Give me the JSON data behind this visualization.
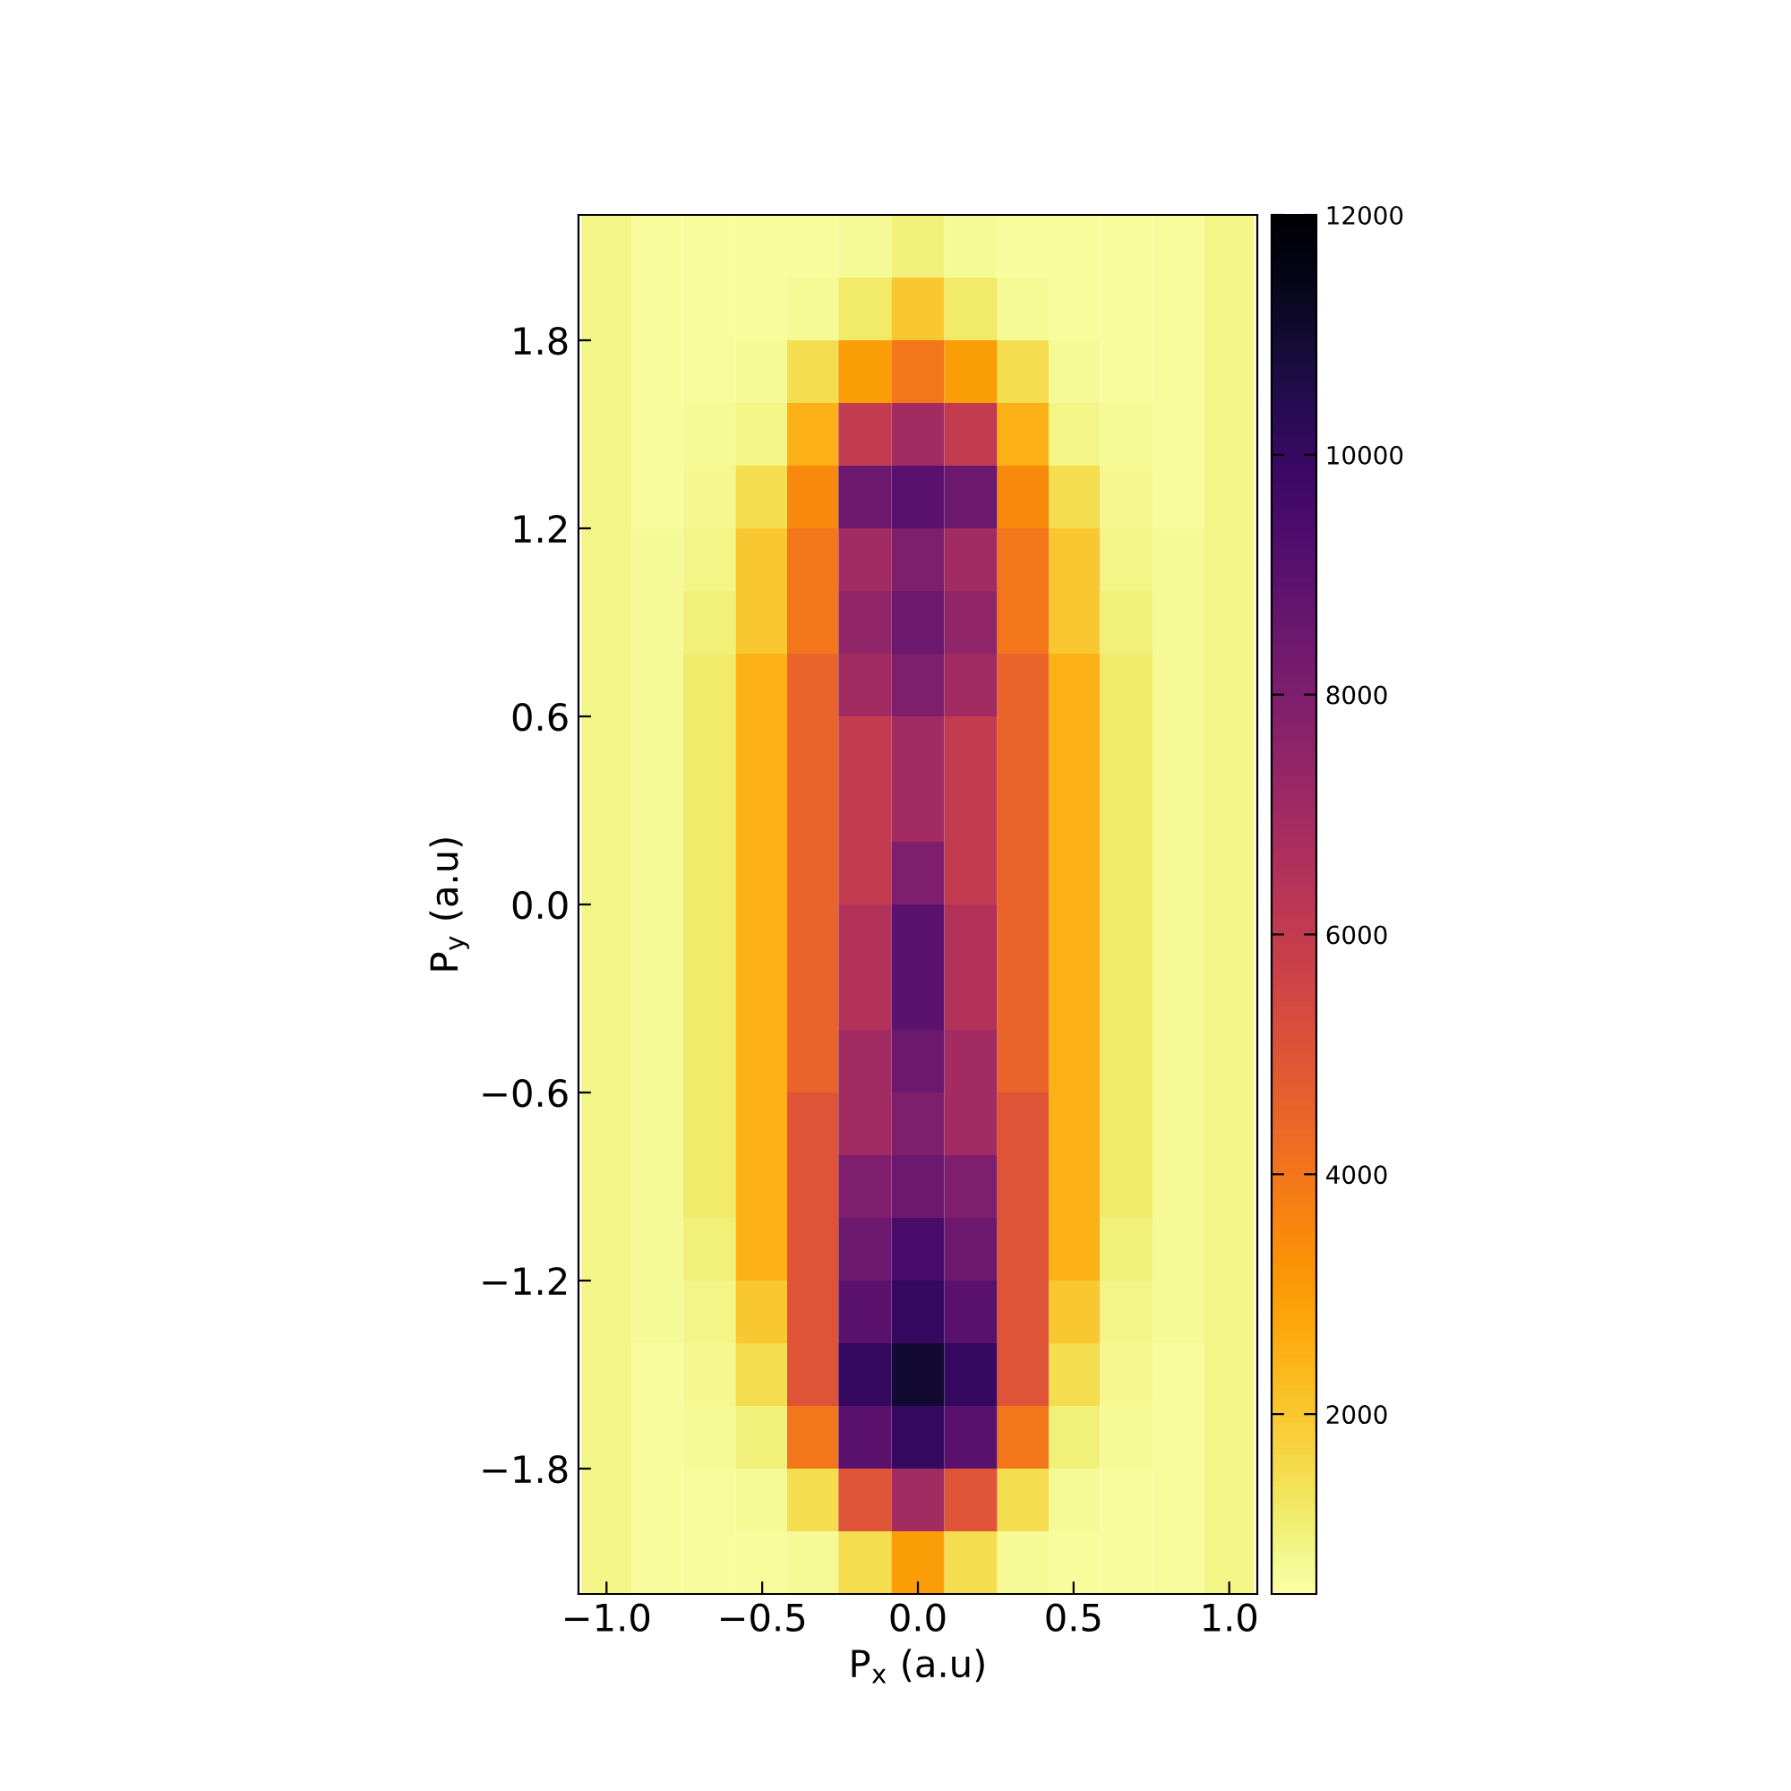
{
  "chart_data": {
    "type": "heatmap",
    "xlabel": "P$_{x}$ (a.u)",
    "ylabel": "P$_{y}$ (a.u)",
    "xlim": [
      -1.09,
      1.09
    ],
    "ylim": [
      -2.2,
      2.2
    ],
    "xticks": [
      {
        "value": -1.0,
        "label": "−1.0"
      },
      {
        "value": -0.5,
        "label": "−0.5"
      },
      {
        "value": 0.0,
        "label": "0.0"
      },
      {
        "value": 0.5,
        "label": "0.5"
      },
      {
        "value": 1.0,
        "label": "1.0"
      }
    ],
    "yticks": [
      {
        "value": -1.8,
        "label": "−1.8"
      },
      {
        "value": -1.2,
        "label": "−1.2"
      },
      {
        "value": -0.6,
        "label": "−0.6"
      },
      {
        "value": 0.0,
        "label": "0.0"
      },
      {
        "value": 0.6,
        "label": "0.6"
      },
      {
        "value": 1.2,
        "label": "1.2"
      },
      {
        "value": 1.8,
        "label": "1.8"
      }
    ],
    "clim": [
      500,
      12000
    ],
    "cticks": [
      2000,
      4000,
      6000,
      8000,
      10000,
      12000
    ],
    "grid": false,
    "x": [
      -1.0,
      -0.84,
      -0.67,
      -0.5,
      -0.34,
      -0.17,
      0.0,
      0.17,
      0.34,
      0.5,
      0.67,
      0.84,
      1.0
    ],
    "y": [
      2.1,
      1.9,
      1.7,
      1.5,
      1.3,
      1.1,
      0.9,
      0.7,
      0.5,
      0.3,
      0.1,
      -0.1,
      -0.3,
      -0.5,
      -0.7,
      -0.9,
      -1.1,
      -1.3,
      -1.5,
      -1.7,
      -1.9,
      -2.1
    ],
    "cells": [
      [
        900,
        600,
        600,
        600,
        600,
        700,
        1000,
        700,
        600,
        600,
        600,
        600,
        900
      ],
      [
        900,
        600,
        600,
        600,
        700,
        1200,
        2000,
        1200,
        700,
        600,
        600,
        600,
        900
      ],
      [
        900,
        600,
        600,
        700,
        1500,
        3000,
        4000,
        3000,
        1500,
        700,
        600,
        600,
        900
      ],
      [
        900,
        600,
        700,
        900,
        2500,
        6000,
        7000,
        6000,
        2500,
        900,
        700,
        600,
        900
      ],
      [
        900,
        600,
        800,
        1500,
        3500,
        8500,
        9000,
        8500,
        3500,
        1500,
        800,
        600,
        900
      ],
      [
        900,
        700,
        900,
        2000,
        4000,
        7000,
        8000,
        7000,
        4000,
        2000,
        900,
        700,
        900
      ],
      [
        900,
        700,
        1000,
        2000,
        4000,
        7500,
        8500,
        7500,
        4000,
        2000,
        1000,
        700,
        900
      ],
      [
        900,
        700,
        1200,
        2500,
        4500,
        7000,
        8000,
        7000,
        4500,
        2500,
        1200,
        700,
        900
      ],
      [
        900,
        700,
        1200,
        2500,
        4500,
        6000,
        7000,
        6000,
        4500,
        2500,
        1200,
        700,
        900
      ],
      [
        900,
        700,
        1200,
        2500,
        4500,
        6000,
        7000,
        6000,
        4500,
        2500,
        1200,
        700,
        900
      ],
      [
        900,
        700,
        1200,
        2500,
        4500,
        6000,
        8000,
        6000,
        4500,
        2500,
        1200,
        700,
        900
      ],
      [
        900,
        700,
        1200,
        2500,
        4500,
        6500,
        9000,
        6500,
        4500,
        2500,
        1200,
        700,
        900
      ],
      [
        900,
        700,
        1200,
        2500,
        4500,
        6500,
        9000,
        6500,
        4500,
        2500,
        1200,
        700,
        900
      ],
      [
        900,
        700,
        1200,
        2500,
        4500,
        7000,
        8500,
        7000,
        4500,
        2500,
        1200,
        700,
        900
      ],
      [
        900,
        700,
        1200,
        2500,
        5000,
        7000,
        8000,
        7000,
        5000,
        2500,
        1200,
        700,
        900
      ],
      [
        900,
        700,
        1200,
        2500,
        5000,
        8000,
        8500,
        8000,
        5000,
        2500,
        1200,
        700,
        900
      ],
      [
        900,
        700,
        1000,
        2500,
        5000,
        8500,
        9500,
        8500,
        5000,
        2500,
        1000,
        700,
        900
      ],
      [
        900,
        700,
        900,
        2000,
        5000,
        9000,
        10000,
        9000,
        5000,
        2000,
        900,
        700,
        900
      ],
      [
        900,
        600,
        800,
        1500,
        5000,
        10000,
        11000,
        10000,
        5000,
        1500,
        800,
        600,
        900
      ],
      [
        900,
        600,
        700,
        1000,
        4000,
        9000,
        10000,
        9000,
        4000,
        1000,
        700,
        600,
        900
      ],
      [
        900,
        600,
        600,
        700,
        1500,
        5000,
        7000,
        5000,
        1500,
        700,
        600,
        600,
        900
      ],
      [
        900,
        600,
        600,
        600,
        700,
        1500,
        3000,
        1500,
        700,
        600,
        600,
        600,
        900
      ]
    ]
  }
}
